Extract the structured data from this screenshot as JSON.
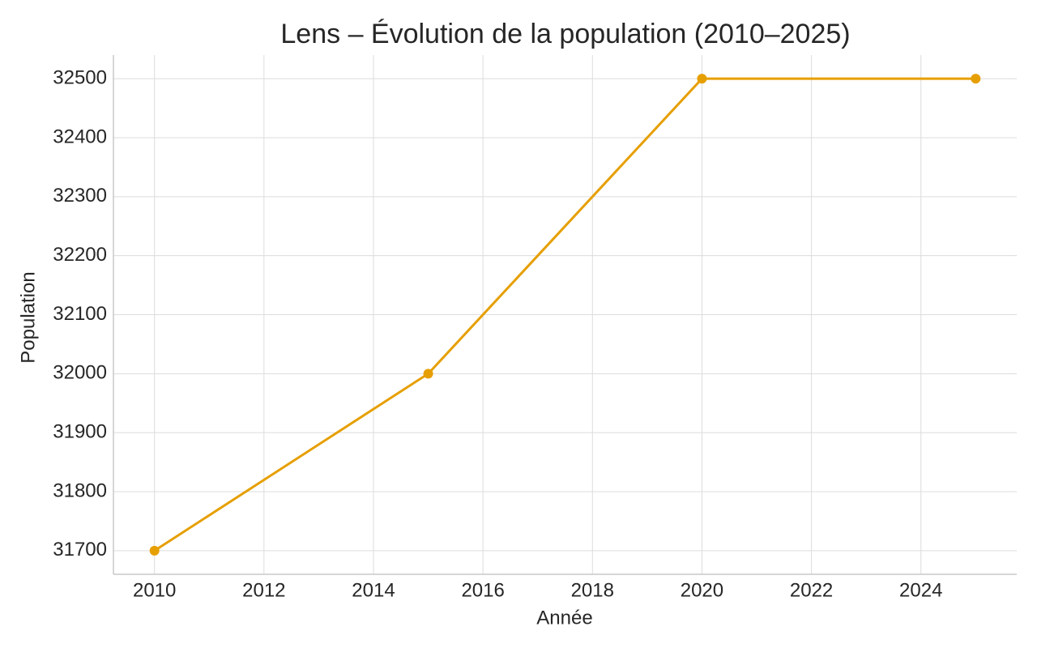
{
  "chart_data": {
    "type": "line",
    "title": "Lens – Évolution de la population (2010–2025)",
    "x_label": "Année",
    "y_label": "Population",
    "x": [
      2010,
      2015,
      2020,
      2025
    ],
    "series": [
      {
        "name": "Population",
        "color": "#e69f00",
        "values": [
          31700,
          32000,
          32500,
          32500
        ]
      }
    ],
    "xlim": [
      2009.25,
      2025.75
    ],
    "xticks": [
      2010,
      2012,
      2014,
      2016,
      2018,
      2020,
      2022,
      2024
    ],
    "ylim": [
      31660,
      32540
    ],
    "yticks": [
      31700,
      31800,
      31900,
      32000,
      32100,
      32200,
      32300,
      32400,
      32500
    ],
    "grid": true
  }
}
